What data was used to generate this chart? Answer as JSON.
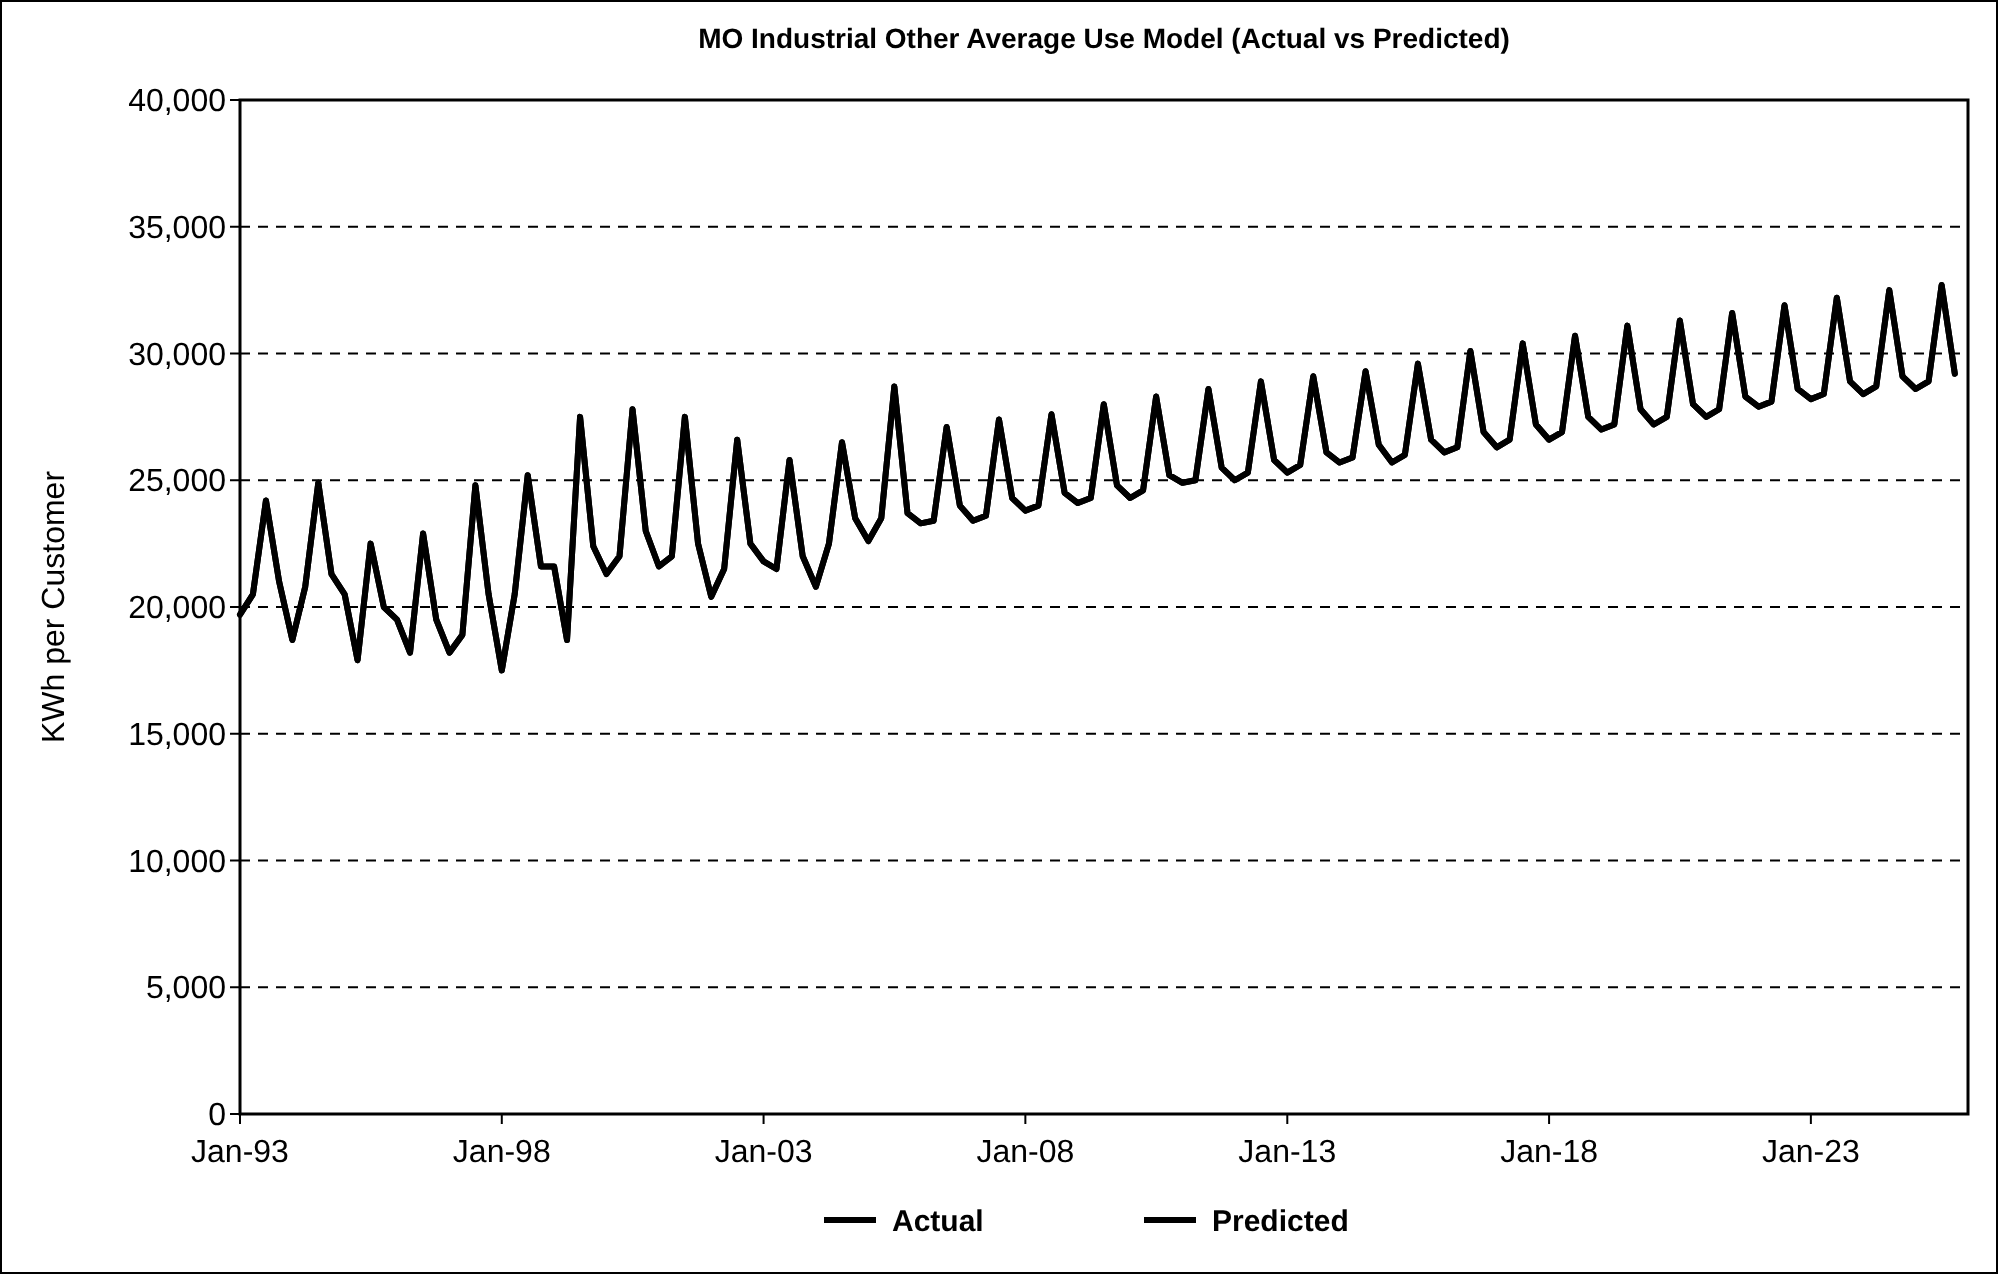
{
  "chart_data": {
    "type": "line",
    "title": "MO Industrial Other Average Use Model (Actual vs Predicted)",
    "ylabel": "KWh per Customer",
    "x": [
      "1993-01",
      "1993-04",
      "1993-07",
      "1993-10",
      "1994-01",
      "1994-04",
      "1994-07",
      "1994-10",
      "1995-01",
      "1995-04",
      "1995-07",
      "1995-10",
      "1996-01",
      "1996-04",
      "1996-07",
      "1996-10",
      "1997-01",
      "1997-04",
      "1997-07",
      "1997-10",
      "1998-01",
      "1998-04",
      "1998-07",
      "1998-10",
      "1999-01",
      "1999-04",
      "1999-07",
      "1999-10",
      "2000-01",
      "2000-04",
      "2000-07",
      "2000-10",
      "2001-01",
      "2001-04",
      "2001-07",
      "2001-10",
      "2002-01",
      "2002-04",
      "2002-07",
      "2002-10",
      "2003-01",
      "2003-04",
      "2003-07",
      "2003-10",
      "2004-01",
      "2004-04",
      "2004-07",
      "2004-10",
      "2005-01",
      "2005-04",
      "2005-07",
      "2005-10",
      "2006-01",
      "2006-04",
      "2006-07",
      "2006-10",
      "2007-01",
      "2007-04",
      "2007-07",
      "2007-10",
      "2008-01",
      "2008-04",
      "2008-07",
      "2008-10",
      "2009-01",
      "2009-04",
      "2009-07",
      "2009-10",
      "2010-01",
      "2010-04",
      "2010-07",
      "2010-10",
      "2011-01",
      "2011-04",
      "2011-07",
      "2011-10",
      "2012-01",
      "2012-04",
      "2012-07",
      "2012-10",
      "2013-01",
      "2013-04",
      "2013-07",
      "2013-10",
      "2014-01",
      "2014-04",
      "2014-07",
      "2014-10",
      "2015-01",
      "2015-04",
      "2015-07",
      "2015-10",
      "2016-01",
      "2016-04",
      "2016-07",
      "2016-10",
      "2017-01",
      "2017-04",
      "2017-07",
      "2017-10",
      "2018-01",
      "2018-04",
      "2018-07",
      "2018-10",
      "2019-01",
      "2019-04",
      "2019-07",
      "2019-10",
      "2020-01",
      "2020-04",
      "2020-07",
      "2020-10",
      "2021-01",
      "2021-04",
      "2021-07",
      "2021-10",
      "2022-01",
      "2022-04",
      "2022-07",
      "2022-10",
      "2023-01",
      "2023-04",
      "2023-07",
      "2023-10",
      "2024-01",
      "2024-04",
      "2024-07",
      "2024-10",
      "2025-01",
      "2025-04",
      "2025-07",
      "2025-10"
    ],
    "series": [
      {
        "name": "Actual",
        "color": "#000000",
        "values": [
          19700,
          20500,
          24200,
          21000,
          18700,
          20800,
          24900,
          21300,
          20500,
          17900,
          22500,
          20000,
          19500,
          18200,
          22900,
          19500,
          18200,
          18900,
          24800,
          20500,
          17500,
          20500,
          25200,
          21600,
          21600,
          18700,
          27500,
          22400,
          21300,
          22000,
          27800,
          23000,
          21600,
          22000,
          27500,
          22500,
          20400,
          21500,
          26600,
          22500,
          21800,
          21500,
          25800,
          22000,
          20800,
          22500,
          26500,
          23500,
          22600,
          23500,
          28700,
          23700,
          23300,
          23400,
          27100,
          24000,
          23400,
          23600,
          27400,
          24300,
          23800,
          24000,
          27600,
          24500,
          24100,
          24300,
          28000,
          24800,
          24300,
          24600,
          28300,
          25200,
          24900,
          25000,
          28600,
          25500,
          25000,
          25300,
          28900,
          25800,
          25300,
          25600,
          29100,
          26100,
          25700,
          25900,
          29300,
          26400,
          25700,
          26000,
          29600,
          26600,
          26100,
          26300,
          30100,
          26900,
          26300,
          26600,
          30400,
          27200,
          26600,
          26900,
          30700,
          27500,
          27000,
          27200,
          31100,
          27800,
          27200,
          27500,
          31300,
          28000,
          27500,
          27800,
          31600,
          28300,
          27900,
          28100,
          31900,
          28600,
          28200,
          28400,
          32200,
          28900,
          28400,
          28700,
          32500,
          29100,
          28600,
          28900,
          32700,
          29200
        ]
      },
      {
        "name": "Predicted",
        "color": "#000000",
        "values": [
          19700,
          20500,
          24200,
          21000,
          18700,
          20800,
          24900,
          21300,
          20500,
          17900,
          22500,
          20000,
          19500,
          18200,
          22900,
          19500,
          18200,
          18900,
          24800,
          20500,
          17500,
          20500,
          25200,
          21600,
          21600,
          18700,
          27500,
          22400,
          21300,
          22000,
          27800,
          23000,
          21600,
          22000,
          27500,
          22500,
          20400,
          21500,
          26600,
          22500,
          21800,
          21500,
          25800,
          22000,
          20800,
          22500,
          26500,
          23500,
          22600,
          23500,
          28700,
          23700,
          23300,
          23400,
          27100,
          24000,
          23400,
          23600,
          27400,
          24300,
          23800,
          24000,
          27600,
          24500,
          24100,
          24300,
          28000,
          24800,
          24300,
          24600,
          28300,
          25200,
          24900,
          25000,
          28600,
          25500,
          25000,
          25300,
          28900,
          25800,
          25300,
          25600,
          29100,
          26100,
          25700,
          25900,
          29300,
          26400,
          25700,
          26000,
          29600,
          26600,
          26100,
          26300,
          30100,
          26900,
          26300,
          26600,
          30400,
          27200,
          26600,
          26900,
          30700,
          27500,
          27000,
          27200,
          31100,
          27800,
          27200,
          27500,
          31300,
          28000,
          27500,
          27800,
          31600,
          28300,
          27900,
          28100,
          31900,
          28600,
          28200,
          28400,
          32200,
          28900,
          28400,
          28700,
          32500,
          29100,
          28600,
          28900,
          32700,
          29200
        ]
      }
    ],
    "xlim": [
      "1993-01",
      "2026-01"
    ],
    "xticks": [
      {
        "value": "1993-01",
        "label": "Jan-93"
      },
      {
        "value": "1998-01",
        "label": "Jan-98"
      },
      {
        "value": "2003-01",
        "label": "Jan-03"
      },
      {
        "value": "2008-01",
        "label": "Jan-08"
      },
      {
        "value": "2013-01",
        "label": "Jan-13"
      },
      {
        "value": "2018-01",
        "label": "Jan-18"
      },
      {
        "value": "2023-01",
        "label": "Jan-23"
      }
    ],
    "ylim": [
      0,
      40000
    ],
    "yticks": [
      0,
      {
        "value": 5000,
        "label": "5,000"
      },
      {
        "value": 10000,
        "label": "10,000"
      },
      {
        "value": 15000,
        "label": "15,000"
      },
      {
        "value": 20000,
        "label": "20,000"
      },
      {
        "value": 25000,
        "label": "25,000"
      },
      {
        "value": 30000,
        "label": "30,000"
      },
      {
        "value": 35000,
        "label": "35,000"
      },
      {
        "value": 40000,
        "label": "40,000"
      }
    ],
    "grid": "y",
    "legend": "bottom",
    "marker": "none",
    "line_style": "solid"
  }
}
